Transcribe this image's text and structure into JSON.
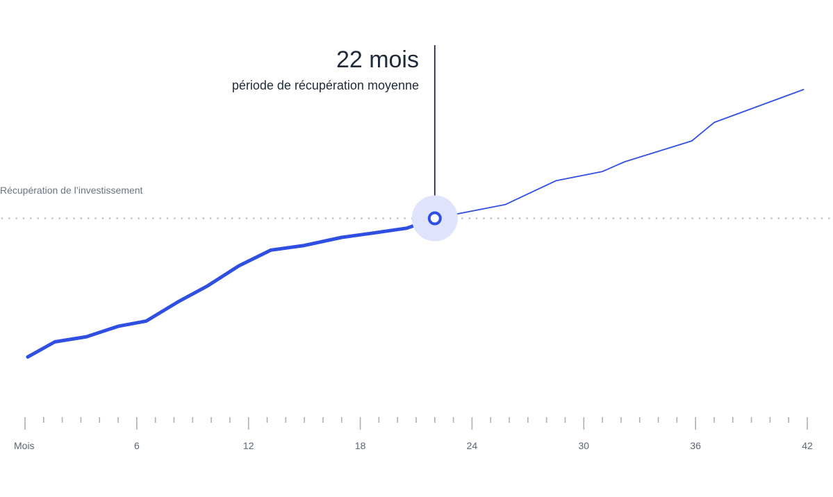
{
  "chart_data": {
    "type": "line",
    "x_axis_label": "Mois",
    "x_ticks": [
      6,
      12,
      18,
      24,
      30,
      36,
      42
    ],
    "x_minor_ticks": [
      0,
      1,
      2,
      3,
      4,
      5,
      6,
      7,
      8,
      9,
      10,
      11,
      12,
      13,
      14,
      15,
      16,
      17,
      18,
      19,
      20,
      21,
      22,
      23,
      24,
      25,
      26,
      27,
      28,
      29,
      30,
      31,
      32,
      33,
      34,
      35,
      36,
      37,
      38,
      39,
      40,
      41,
      42
    ],
    "xlim": [
      0,
      42
    ],
    "ylim": [
      -36,
      33
    ],
    "reference_line": {
      "y": 0,
      "label": "Récupération de l’investissement",
      "style": "dotted"
    },
    "highlight": {
      "x": 22,
      "y": 0,
      "value_label": "22 mois",
      "caption": "période de récupération moyenne"
    },
    "series": [
      {
        "segment": "before",
        "x": [
          0.15,
          1.6,
          3.3,
          5.0,
          6.5,
          8.2,
          9.8,
          11.5,
          13.2,
          15.0,
          17.0,
          18.8,
          20.5,
          22.0
        ],
        "y": [
          -24,
          -21.4,
          -20.5,
          -18.7,
          -17.8,
          -14.5,
          -11.7,
          -8.2,
          -5.5,
          -4.7,
          -3.3,
          -2.5,
          -1.7,
          0
        ]
      },
      {
        "segment": "after",
        "x": [
          22.0,
          25.8,
          28.5,
          31.0,
          32.2,
          35.8,
          37.0,
          41.8
        ],
        "y": [
          0,
          2.4,
          6.5,
          8.1,
          9.8,
          13.4,
          16.6,
          22.3
        ]
      }
    ],
    "colors": {
      "line": "#2f4fe3",
      "halo": "#dfe3fb",
      "axis": "#a9afb8",
      "leader": "#1f2a3a",
      "dots": "#b9bec6"
    }
  }
}
